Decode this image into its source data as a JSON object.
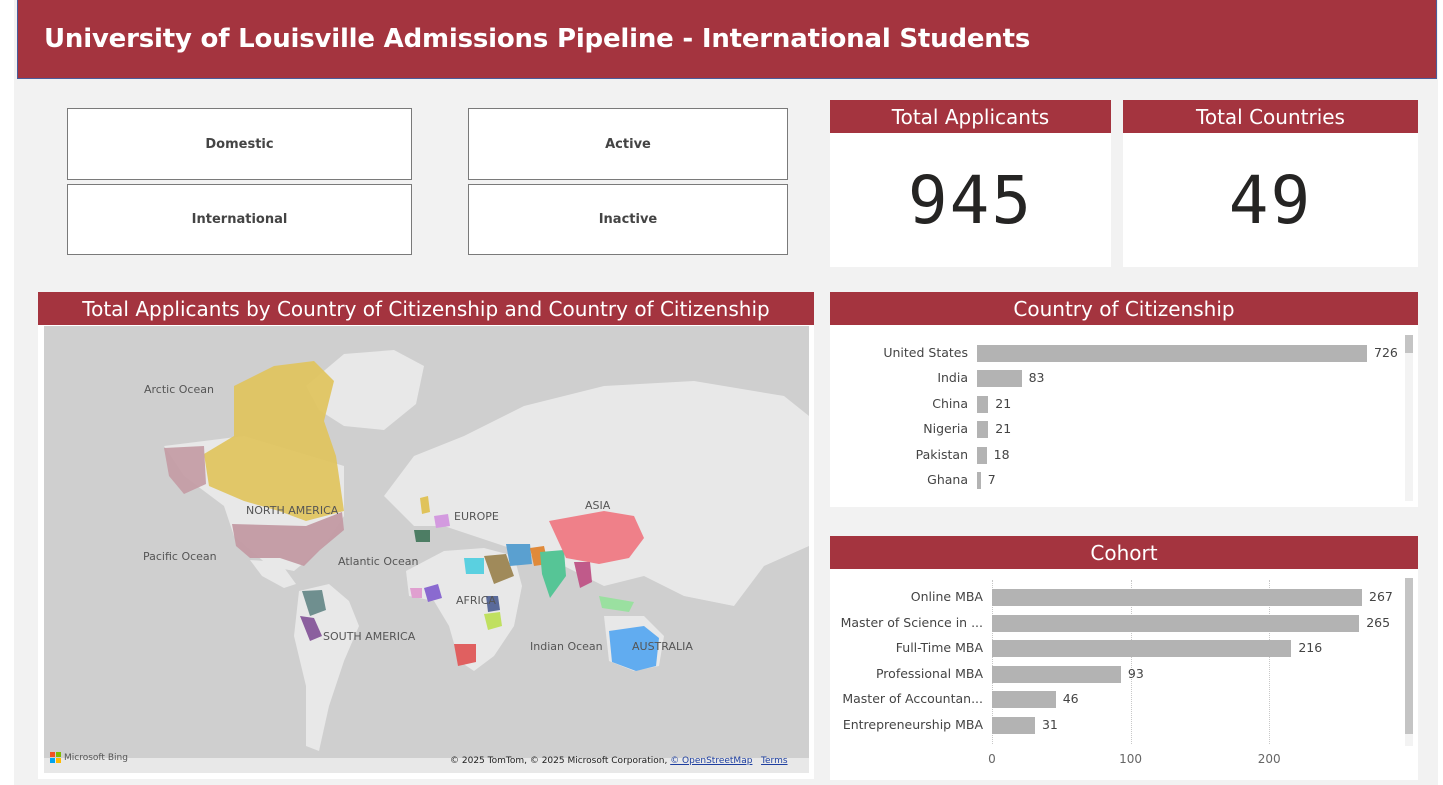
{
  "header": {
    "title": "University of Louisville Admissions Pipeline - International Students"
  },
  "slicers": {
    "domestic": "Domestic",
    "international": "International",
    "active": "Active",
    "inactive": "Inactive"
  },
  "kpis": {
    "total_applicants": {
      "label": "Total Applicants",
      "value": "945"
    },
    "total_countries": {
      "label": "Total Countries",
      "value": "49"
    }
  },
  "map": {
    "title": "Total Applicants by Country of Citizenship and Country of Citizenship",
    "labels": {
      "arctic": "Arctic Ocean",
      "pacific": "Pacific Ocean",
      "atlantic": "Atlantic Ocean",
      "indian": "Indian Ocean",
      "north_america": "NORTH AMERICA",
      "south_america": "SOUTH AMERICA",
      "europe": "EUROPE",
      "asia": "ASIA",
      "africa": "AFRICA",
      "australia": "AUSTRALIA"
    },
    "bing": "Microsoft Bing",
    "attribution": "© 2025 TomTom, © 2025 Microsoft Corporation,",
    "osm_link": "© OpenStreetMap",
    "terms_link": "Terms",
    "colors": {
      "water": "#cfcfcf",
      "land": "#e8e8e8",
      "canada": "#e0c35a",
      "usa": "#c39aa3",
      "china": "#ef7a84",
      "india": "#56c596",
      "australia": "#5aa9f0"
    }
  },
  "chart_data": [
    {
      "type": "bar",
      "orientation": "horizontal",
      "title": "Country of Citizenship",
      "categories": [
        "United States",
        "India",
        "China",
        "Nigeria",
        "Pakistan",
        "Ghana"
      ],
      "values": [
        726,
        83,
        21,
        21,
        18,
        7
      ],
      "xlim": [
        0,
        726
      ]
    },
    {
      "type": "bar",
      "orientation": "horizontal",
      "title": "Cohort",
      "categories": [
        "Online MBA",
        "Master of Science in ...",
        "Full-Time MBA",
        "Professional MBA",
        "Master of Accountan...",
        "Entrepreneurship MBA"
      ],
      "values": [
        267,
        265,
        216,
        93,
        46,
        31
      ],
      "xticks": [
        "0",
        "100",
        "200"
      ],
      "xlim": [
        0,
        267
      ],
      "grid": true
    }
  ],
  "colors": {
    "accent": "#a4343f",
    "bar": "#b3b3b3"
  }
}
